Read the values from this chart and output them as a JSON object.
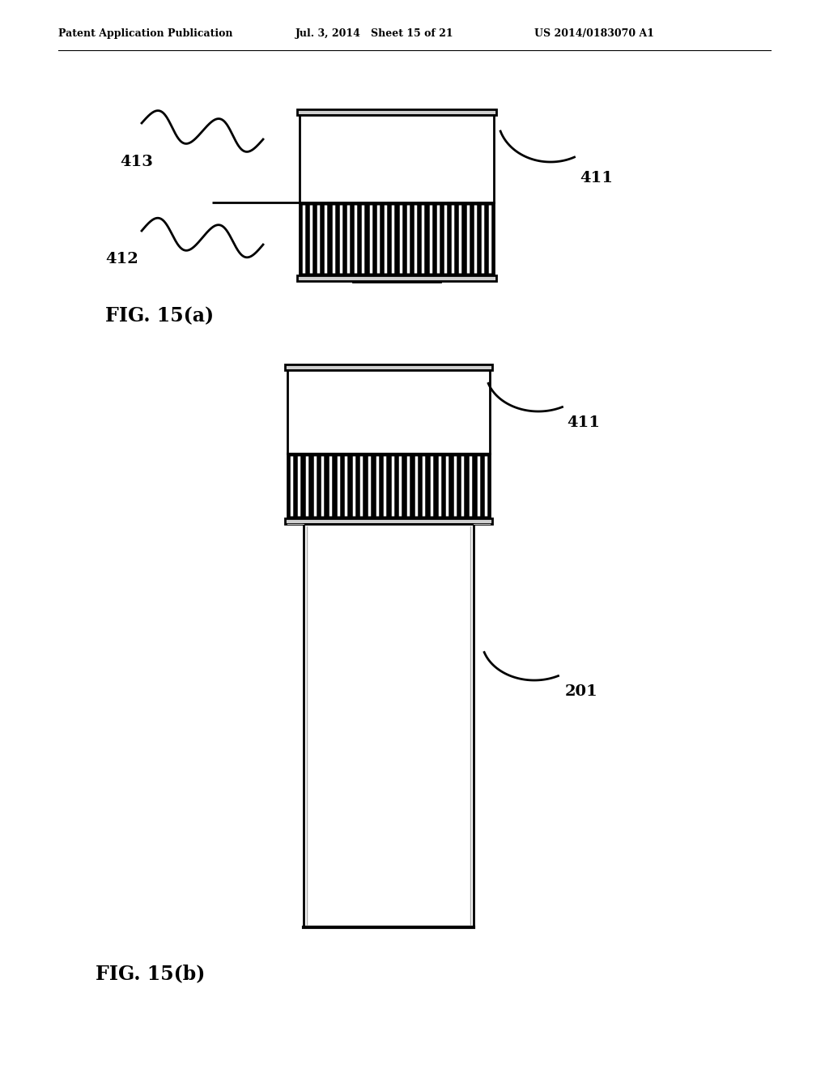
{
  "background_color": "#ffffff",
  "header_left": "Patent Application Publication",
  "header_mid": "Jul. 3, 2014   Sheet 15 of 21",
  "header_right": "US 2014/0183070 A1",
  "fig_a_label": "FIG. 15(a)",
  "fig_b_label": "FIG. 15(b)",
  "label_411a": "411",
  "label_412": "412",
  "label_413": "413",
  "label_411b": "411",
  "label_201": "201",
  "line_color": "#000000",
  "n_ribs_a": 26,
  "n_ribs_b": 26
}
